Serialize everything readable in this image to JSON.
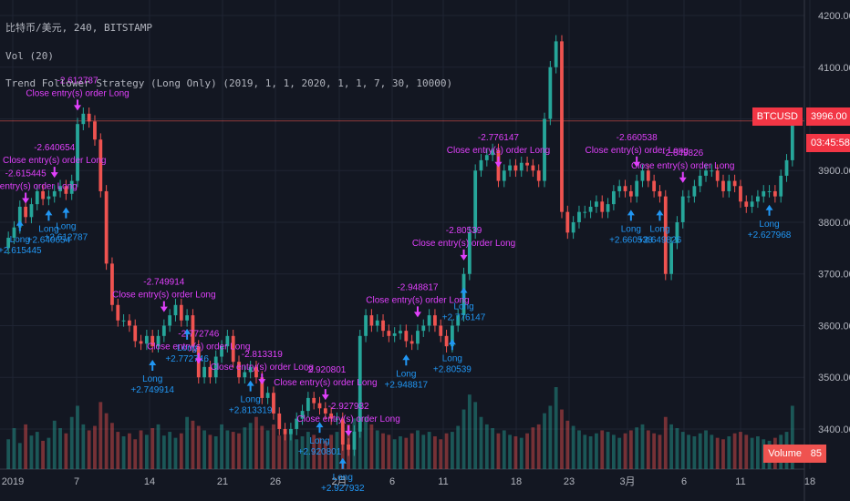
{
  "header": {
    "symbol_line": "比特币/美元, 240, BITSTAMP",
    "volume_line": "Vol (20)",
    "strategy_line": "Trend Follower Strategy (Long Only) (2019, 1, 1, 2020, 1, 1, 7, 30, 10000)"
  },
  "price_tags": {
    "symbol": "BTCUSD",
    "price": "3996.00",
    "countdown": "03:45:58",
    "volume": "Volume",
    "volume_value": "85",
    "symbol_color": "#f23645",
    "volume_color": "#ef5350"
  },
  "colors": {
    "background": "#131722",
    "up_candle": "#26a69a",
    "down_candle": "#ef5350",
    "long_signal": "#2196f3",
    "close_signal": "#e040fb"
  },
  "chart_data": {
    "type": "candlestick",
    "title": "",
    "ylim": [
      3340,
      4230
    ],
    "y_ticks": [
      "4200.00",
      "4100.00",
      "4000.00",
      "3900.00",
      "3800.00",
      "3700.00",
      "3600.00",
      "3500.00",
      "3400.00"
    ],
    "y_tick_values": [
      4200,
      4100,
      4000,
      3900,
      3800,
      3700,
      3600,
      3500,
      3400
    ],
    "x_ticks": [
      "2019",
      "7",
      "14",
      "21",
      "26",
      "2月",
      "6",
      "11",
      "18",
      "23",
      "3月",
      "6",
      "11",
      "18"
    ],
    "horizontal_line": 3996,
    "close_series": [
      3770,
      3790,
      3830,
      3810,
      3835,
      3860,
      3845,
      3850,
      3860,
      3870,
      3855,
      3880,
      3990,
      4010,
      3995,
      3960,
      3860,
      3720,
      3640,
      3610,
      3610,
      3600,
      3570,
      3565,
      3580,
      3560,
      3580,
      3600,
      3620,
      3640,
      3610,
      3620,
      3560,
      3500,
      3520,
      3500,
      3540,
      3560,
      3580,
      3530,
      3500,
      3510,
      3520,
      3500,
      3460,
      3470,
      3430,
      3400,
      3390,
      3400,
      3420,
      3435,
      3460,
      3450,
      3440,
      3430,
      3420,
      3420,
      3370,
      3360,
      3395,
      3580,
      3620,
      3600,
      3610,
      3590,
      3580,
      3585,
      3590,
      3570,
      3565,
      3590,
      3600,
      3620,
      3600,
      3580,
      3560,
      3600,
      3620,
      3700,
      3780,
      3900,
      3920,
      3930,
      3940,
      3880,
      3900,
      3910,
      3900,
      3915,
      3910,
      3900,
      3880,
      4000,
      4100,
      4150,
      3820,
      3780,
      3800,
      3820,
      3820,
      3830,
      3840,
      3820,
      3835,
      3860,
      3870,
      3860,
      3850,
      3880,
      3900,
      3880,
      3860,
      3850,
      3700,
      3760,
      3800,
      3850,
      3850,
      3870,
      3890,
      3900,
      3900,
      3880,
      3860,
      3880,
      3870,
      3840,
      3830,
      3840,
      3850,
      3860,
      3860,
      3850,
      3890,
      3920,
      3996
    ],
    "volume_series": [
      40,
      55,
      35,
      60,
      45,
      50,
      38,
      42,
      65,
      55,
      48,
      70,
      85,
      60,
      52,
      58,
      90,
      75,
      62,
      50,
      44,
      48,
      40,
      52,
      46,
      55,
      60,
      45,
      50,
      42,
      48,
      70,
      65,
      58,
      52,
      46,
      44,
      60,
      52,
      50,
      48,
      56,
      62,
      70,
      58,
      52,
      60,
      45,
      48,
      52,
      40,
      44,
      50,
      46,
      42,
      38,
      46,
      50,
      55,
      60,
      68,
      95,
      70,
      60,
      52,
      48,
      46,
      40,
      44,
      42,
      48,
      52,
      46,
      50,
      44,
      40,
      48,
      50,
      58,
      80,
      100,
      90,
      70,
      60,
      55,
      48,
      52,
      46,
      44,
      42,
      48,
      56,
      60,
      75,
      85,
      110,
      80,
      65,
      58,
      52,
      46,
      44,
      48,
      52,
      50,
      46,
      42,
      48,
      52,
      56,
      60,
      52,
      48,
      46,
      70,
      60,
      55,
      50,
      46,
      44,
      48,
      52,
      46,
      42,
      40,
      44,
      48,
      50,
      46,
      42,
      44,
      40,
      38,
      42,
      46,
      50,
      85
    ],
    "signals": [
      {
        "type": "long",
        "index": 2,
        "label": "Long",
        "value": "+2.615445"
      },
      {
        "type": "close",
        "index": 3,
        "label": "Close entry(s) order Long",
        "value": "-2.615445"
      },
      {
        "type": "long",
        "index": 7,
        "label": "Long",
        "value": "+2.640654"
      },
      {
        "type": "close",
        "index": 8,
        "label": "Close entry(s) order Long",
        "value": "-2.640654"
      },
      {
        "type": "long",
        "index": 10,
        "label": "Long",
        "value": "+2.612787"
      },
      {
        "type": "close",
        "index": 12,
        "label": "Close entry(s) order Long",
        "value": "-2.612787"
      },
      {
        "type": "long",
        "index": 31,
        "label": "Long",
        "value": "+2.772746"
      },
      {
        "type": "close",
        "index": 33,
        "label": "Close entry(s) order Long",
        "value": "-2.772746"
      },
      {
        "type": "long",
        "index": 25,
        "label": "Long",
        "value": "+2.749914"
      },
      {
        "type": "close",
        "index": 27,
        "label": "Close entry(s) order Long",
        "value": "-2.749914"
      },
      {
        "type": "long",
        "index": 42,
        "label": "Long",
        "value": "+2.813319"
      },
      {
        "type": "close",
        "index": 44,
        "label": "Close entry(s) order Long",
        "value": "-2.813319"
      },
      {
        "type": "long",
        "index": 54,
        "label": "Long",
        "value": "+2.920801"
      },
      {
        "type": "close",
        "index": 55,
        "label": "Close entry(s) order Long",
        "value": "-2.920801"
      },
      {
        "type": "long",
        "index": 58,
        "label": "Long",
        "value": "+2.927932"
      },
      {
        "type": "close",
        "index": 59,
        "label": "Close entry(s) order Long",
        "value": "-2.927932"
      },
      {
        "type": "long",
        "index": 69,
        "label": "Long",
        "value": "+2.948817"
      },
      {
        "type": "close",
        "index": 71,
        "label": "Close entry(s) order Long",
        "value": "-2.948817"
      },
      {
        "type": "long",
        "index": 77,
        "label": "Long",
        "value": "+2.80539"
      },
      {
        "type": "close",
        "index": 79,
        "label": "Close entry(s) order Long",
        "value": "-2.80539"
      },
      {
        "type": "long",
        "index": 79,
        "label": "Long",
        "value": "+2.776147"
      },
      {
        "type": "close",
        "index": 85,
        "label": "Close entry(s) order Long",
        "value": "-2.776147"
      },
      {
        "type": "long",
        "index": 108,
        "label": "Long",
        "value": "+2.660538"
      },
      {
        "type": "close",
        "index": 109,
        "label": "Close entry(s) order Long",
        "value": "-2.660538"
      },
      {
        "type": "long",
        "index": 113,
        "label": "Long",
        "value": "+2.649826"
      },
      {
        "type": "close",
        "index": 117,
        "label": "Close entry(s) order Long",
        "value": "-2.649826"
      },
      {
        "type": "long",
        "index": 132,
        "label": "Long",
        "value": "+2.627968"
      }
    ]
  }
}
